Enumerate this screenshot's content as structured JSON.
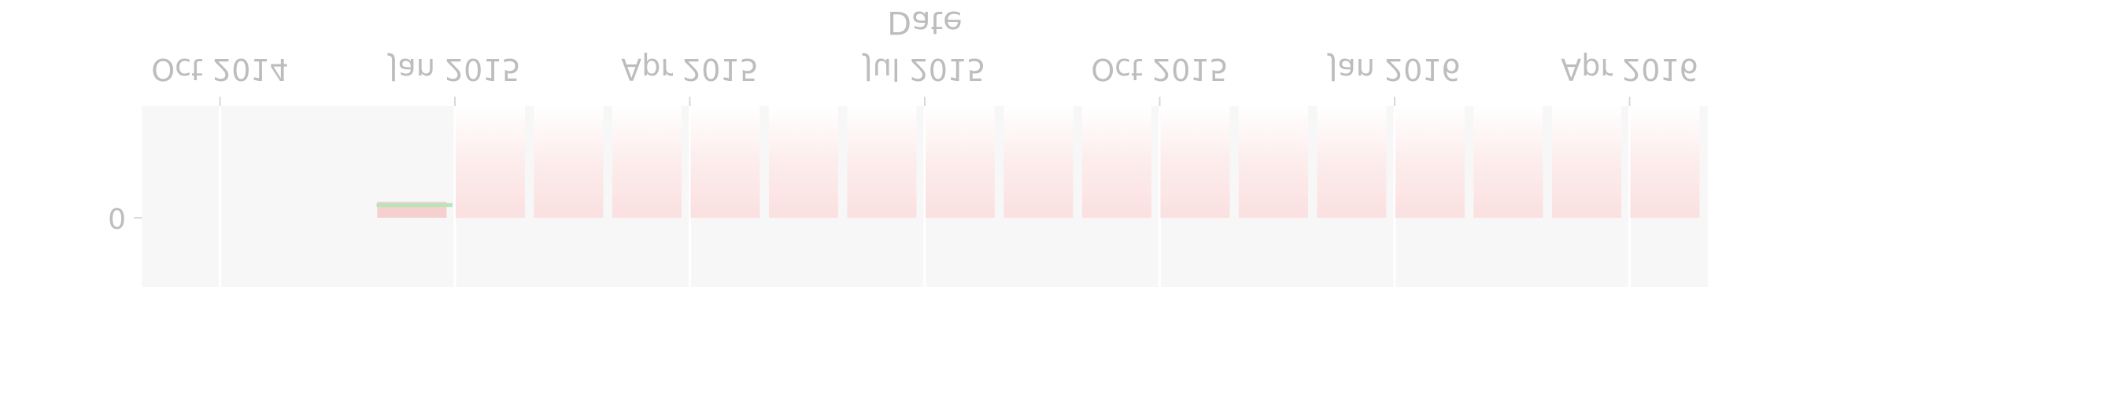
{
  "chart_data": {
    "type": "bar",
    "title": "",
    "xlabel": "Date",
    "ylabel": "",
    "x_axis_type": "date",
    "x_axis_position": "top",
    "grid": true,
    "categories": [
      "2014-12",
      "2015-01",
      "2015-02",
      "2015-03",
      "2015-04",
      "2015-05",
      "2015-06",
      "2015-07",
      "2015-08",
      "2015-09",
      "2015-10",
      "2015-11",
      "2015-12",
      "2016-01",
      "2016-02",
      "2016-03",
      "2016-04"
    ],
    "series": [
      {
        "color": "#f8c9c9",
        "values": [
          -0.05,
          -0.35,
          -0.35,
          -0.35,
          -0.35,
          -0.35,
          -0.35,
          -0.35,
          -0.35,
          -0.35,
          -0.35,
          -0.35,
          -0.35,
          -0.35,
          -0.35,
          -0.35,
          -0.35
        ]
      }
    ],
    "line_segments": [
      {
        "color": "#b7e5b7",
        "start": "2014-12-01",
        "end": "2014-12-31",
        "value": -0.04
      }
    ],
    "xticks": [
      {
        "date": "2014-10-01",
        "label": "Oct 2014"
      },
      {
        "date": "2015-01-01",
        "label": "Jan 2015"
      },
      {
        "date": "2015-04-01",
        "label": "Apr 2015"
      },
      {
        "date": "2015-07-01",
        "label": "Jul 2015"
      },
      {
        "date": "2015-10-01",
        "label": "Oct 2015"
      },
      {
        "date": "2016-01-01",
        "label": "Jan 2016"
      },
      {
        "date": "2016-04-01",
        "label": "Apr 2016"
      }
    ],
    "yticks": [
      {
        "value": 0,
        "label": "0"
      }
    ],
    "xlim": [
      "2014-09-01",
      "2016-05-01"
    ],
    "ylim": [
      -0.35,
      0.13
    ],
    "colors": {
      "panel_background": "#f7f7f7",
      "gridline": "#ffffff",
      "text": "#bdbdbd",
      "bar_fill": "#f8c9c9",
      "line": "#b7e5b7"
    }
  }
}
